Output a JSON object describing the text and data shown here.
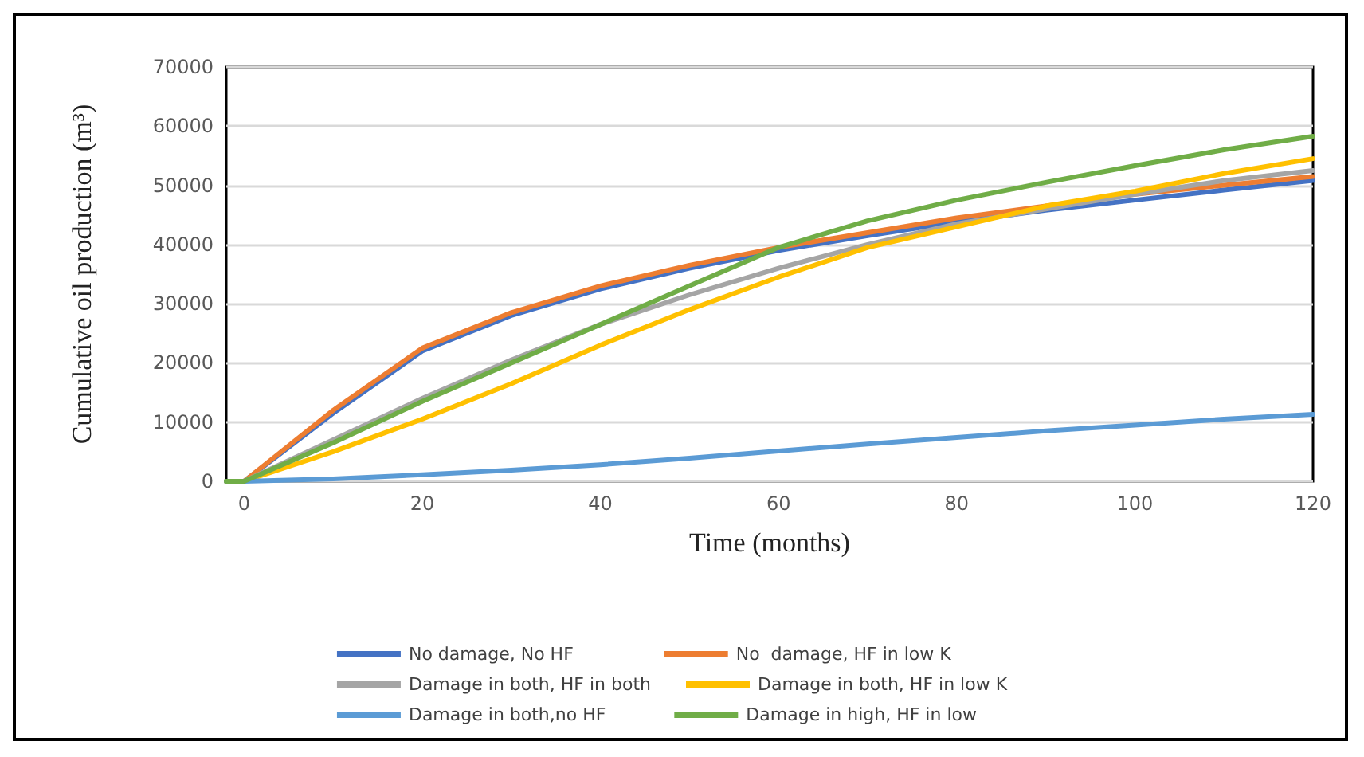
{
  "chart_data": {
    "type": "line",
    "xlabel": "Time (months)",
    "ylabel": "Cumulative oil production (m³)",
    "x": [
      -2,
      0,
      10,
      20,
      30,
      40,
      50,
      60,
      70,
      80,
      90,
      100,
      110,
      120
    ],
    "xlim": [
      -2,
      120
    ],
    "xticks": [
      0,
      20,
      40,
      60,
      80,
      100,
      120
    ],
    "ylim": [
      0,
      70000
    ],
    "yticks": [
      0,
      10000,
      20000,
      30000,
      40000,
      50000,
      60000,
      70000
    ],
    "grid": "y",
    "legend": "bottom",
    "marker": "none",
    "line_style": "solid",
    "series": [
      {
        "name": "No damage, No HF",
        "color": "#4472c4",
        "values": [
          0,
          0,
          11500,
          22000,
          28000,
          32500,
          36000,
          39000,
          41500,
          43800,
          45800,
          47500,
          49200,
          50800
        ]
      },
      {
        "name": "No  damage, HF in low K",
        "color": "#ed7d31",
        "values": [
          0,
          0,
          12000,
          22500,
          28500,
          33000,
          36500,
          39500,
          42000,
          44500,
          46500,
          48500,
          50000,
          51500
        ]
      },
      {
        "name": "Damage in both, HF in both",
        "color": "#a5a5a5",
        "values": [
          0,
          0,
          7000,
          14000,
          20500,
          26500,
          31500,
          36000,
          40000,
          43500,
          46000,
          48500,
          50800,
          52500
        ]
      },
      {
        "name": "Damage in both, HF in low K",
        "color": "#ffc000",
        "values": [
          0,
          0,
          5000,
          10500,
          16500,
          23000,
          29000,
          34500,
          39500,
          43000,
          46500,
          49000,
          52000,
          54500
        ]
      },
      {
        "name": "Damage in both,no HF",
        "color": "#5b9bd5",
        "values": [
          0,
          0,
          400,
          1100,
          1900,
          2800,
          3900,
          5100,
          6300,
          7400,
          8500,
          9500,
          10500,
          11300
        ]
      },
      {
        "name": "Damage in high, HF in low",
        "color": "#70ad47",
        "values": [
          0,
          0,
          6500,
          13500,
          20000,
          26500,
          33000,
          39500,
          44000,
          47500,
          50500,
          53300,
          56000,
          58300
        ]
      }
    ]
  }
}
